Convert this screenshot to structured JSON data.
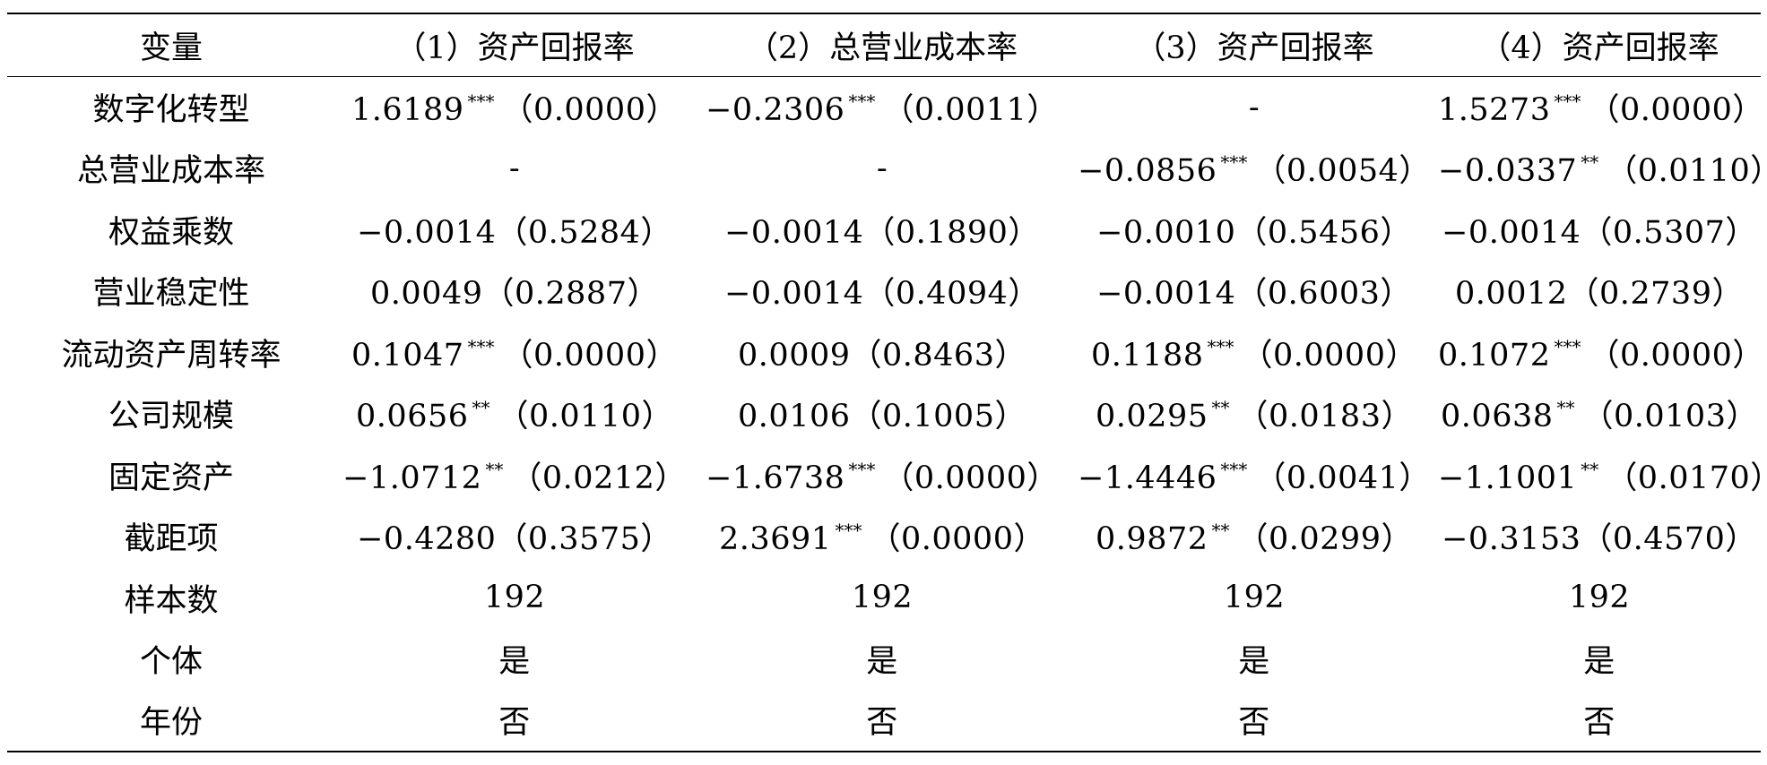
{
  "table": {
    "headers": [
      "变量",
      "（1）资产回报率",
      "（2）总营业成本率",
      "（3）资产回报率",
      "（4）资产回报率"
    ],
    "rows": [
      {
        "label": "数字化转型",
        "cells": [
          {
            "coef": "1.6189",
            "stars": "***",
            "p": "（0.0000）"
          },
          {
            "coef": "−0.2306",
            "stars": "***",
            "p": "（0.0011）"
          },
          {
            "coef": "-",
            "stars": "",
            "p": ""
          },
          {
            "coef": "1.5273",
            "stars": "***",
            "p": "（0.0000）"
          }
        ]
      },
      {
        "label": "总营业成本率",
        "cells": [
          {
            "coef": "-",
            "stars": "",
            "p": ""
          },
          {
            "coef": "-",
            "stars": "",
            "p": ""
          },
          {
            "coef": "−0.0856",
            "stars": "***",
            "p": "（0.0054）"
          },
          {
            "coef": "−0.0337",
            "stars": "**",
            "p": "（0.0110）"
          }
        ]
      },
      {
        "label": "权益乘数",
        "cells": [
          {
            "coef": "−0.0014",
            "stars": "",
            "p": "（0.5284）"
          },
          {
            "coef": "−0.0014",
            "stars": "",
            "p": "（0.1890）"
          },
          {
            "coef": "−0.0010",
            "stars": "",
            "p": "（0.5456）"
          },
          {
            "coef": "−0.0014",
            "stars": "",
            "p": "（0.5307）"
          }
        ]
      },
      {
        "label": "营业稳定性",
        "cells": [
          {
            "coef": "0.0049",
            "stars": "",
            "p": "（0.2887）"
          },
          {
            "coef": "−0.0014",
            "stars": "",
            "p": "（0.4094）"
          },
          {
            "coef": "−0.0014",
            "stars": "",
            "p": "（0.6003）"
          },
          {
            "coef": "0.0012",
            "stars": "",
            "p": "（0.2739）"
          }
        ]
      },
      {
        "label": "流动资产周转率",
        "cells": [
          {
            "coef": "0.1047",
            "stars": "***",
            "p": "（0.0000）"
          },
          {
            "coef": "0.0009",
            "stars": "",
            "p": "（0.8463）"
          },
          {
            "coef": "0.1188",
            "stars": "***",
            "p": "（0.0000）"
          },
          {
            "coef": "0.1072",
            "stars": "***",
            "p": "（0.0000）"
          }
        ]
      },
      {
        "label": "公司规模",
        "cells": [
          {
            "coef": "0.0656",
            "stars": "**",
            "p": "（0.0110）"
          },
          {
            "coef": "0.0106",
            "stars": "",
            "p": "（0.1005）"
          },
          {
            "coef": "0.0295",
            "stars": "**",
            "p": "（0.0183）"
          },
          {
            "coef": "0.0638",
            "stars": "**",
            "p": "（0.0103）"
          }
        ]
      },
      {
        "label": "固定资产",
        "cells": [
          {
            "coef": "−1.0712",
            "stars": "**",
            "p": "（0.0212）"
          },
          {
            "coef": "−1.6738",
            "stars": "***",
            "p": "（0.0000）"
          },
          {
            "coef": "−1.4446",
            "stars": "***",
            "p": "（0.0041）"
          },
          {
            "coef": "−1.1001",
            "stars": "**",
            "p": "（0.0170）"
          }
        ]
      },
      {
        "label": "截距项",
        "cells": [
          {
            "coef": "−0.4280",
            "stars": "",
            "p": "（0.3575）"
          },
          {
            "coef": "2.3691",
            "stars": "***",
            "p": "（0.0000）"
          },
          {
            "coef": "0.9872",
            "stars": "**",
            "p": "（0.0299）"
          },
          {
            "coef": "−0.3153",
            "stars": "",
            "p": "（0.4570）"
          }
        ]
      },
      {
        "label": "样本数",
        "cells": [
          {
            "coef": "192",
            "stars": "",
            "p": ""
          },
          {
            "coef": "192",
            "stars": "",
            "p": ""
          },
          {
            "coef": "192",
            "stars": "",
            "p": ""
          },
          {
            "coef": "192",
            "stars": "",
            "p": ""
          }
        ]
      },
      {
        "label": "个体",
        "cells": [
          {
            "coef": "是",
            "stars": "",
            "p": ""
          },
          {
            "coef": "是",
            "stars": "",
            "p": ""
          },
          {
            "coef": "是",
            "stars": "",
            "p": ""
          },
          {
            "coef": "是",
            "stars": "",
            "p": ""
          }
        ]
      },
      {
        "label": "年份",
        "cells": [
          {
            "coef": "否",
            "stars": "",
            "p": ""
          },
          {
            "coef": "否",
            "stars": "",
            "p": ""
          },
          {
            "coef": "否",
            "stars": "",
            "p": ""
          },
          {
            "coef": "否",
            "stars": "",
            "p": ""
          }
        ]
      }
    ]
  }
}
